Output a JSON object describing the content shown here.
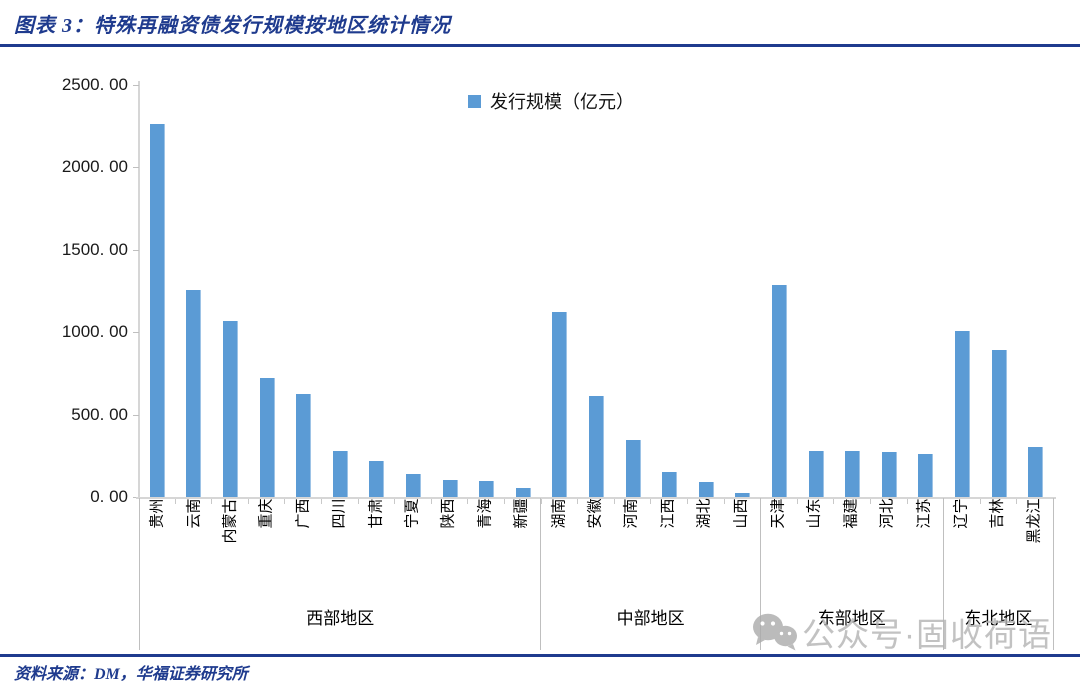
{
  "header": {
    "title": "图表 3：特殊再融资债发行规模按地区统计情况"
  },
  "footer": {
    "source": "资料来源：DM，华福证券研究所"
  },
  "watermark": {
    "icon": "wechat-icon",
    "text": "公众号·固收荷语"
  },
  "colors": {
    "accent_navy": "#1F3B8E",
    "bar_blue": "#5B9BD5",
    "axis_gray": "#D6D6D6",
    "divider_gray": "#BFBFBF",
    "watermark_gray": "#B3B3B3"
  },
  "chart_data": {
    "type": "bar",
    "legend": "发行规模（亿元）",
    "legend_position": "top-center",
    "ylabel": "",
    "xlabel": "",
    "ylim": [
      0,
      2500
    ],
    "ytick_labels": [
      "2500. 00",
      "2000. 00",
      "1500. 00",
      "1000. 00",
      "500. 00",
      "0. 00"
    ],
    "grid": false,
    "bar_color": "#5B9BD5",
    "groups": [
      {
        "region": "西部地区",
        "categories": [
          "贵州",
          "云南",
          "内蒙古",
          "重庆",
          "广西",
          "四川",
          "甘肃",
          "宁夏",
          "陕西",
          "青海",
          "新疆"
        ],
        "values": [
          2264,
          1256,
          1067,
          722,
          623,
          282,
          220,
          137,
          101,
          96,
          56
        ]
      },
      {
        "region": "中部地区",
        "categories": [
          "湖南",
          "安徽",
          "河南",
          "江西",
          "湖北",
          "山西"
        ],
        "values": [
          1122,
          615,
          347,
          152,
          92,
          25
        ]
      },
      {
        "region": "东部地区",
        "categories": [
          "天津",
          "山东",
          "福建",
          "河北",
          "江苏"
        ],
        "values": [
          1286,
          280,
          280,
          273,
          260
        ]
      },
      {
        "region": "东北地区",
        "categories": [
          "辽宁",
          "吉林",
          "黑龙江"
        ],
        "values": [
          1006,
          892,
          303
        ]
      }
    ]
  }
}
